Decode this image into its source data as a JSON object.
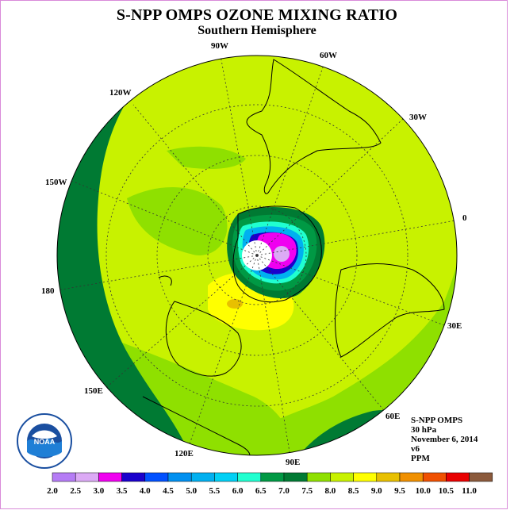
{
  "header": {
    "title": "S-NPP OMPS OZONE MIXING RATIO",
    "subtitle": "Southern Hemisphere"
  },
  "map": {
    "longitude_labels": [
      "90W",
      "60W",
      "120W",
      "30W",
      "150W",
      "0",
      "180",
      "30E",
      "150E",
      "60E",
      "120E",
      "90E"
    ],
    "fill_colors": {
      "dark_green": "#007a33",
      "mid_green": "#8fe000",
      "light_green": "#c8f200",
      "yellow": "#ffff00",
      "gold": "#e8c000",
      "white": "#ffffff"
    }
  },
  "info": {
    "line1": "S-NPP OMPS",
    "line2": "30 hPa",
    "line3": "November 6, 2014",
    "line4": "v6",
    "line5": "PPM"
  },
  "logo": {
    "icon": "noaa-logo",
    "text": "NOAA"
  },
  "colorbar": {
    "ticks": [
      "2.0",
      "2.5",
      "3.0",
      "3.5",
      "4.0",
      "4.5",
      "5.0",
      "5.5",
      "6.0",
      "6.5",
      "7.0",
      "7.5",
      "8.0",
      "8.5",
      "9.0",
      "9.5",
      "10.0",
      "10.5",
      "11.0"
    ],
    "colors": [
      "#b57cf5",
      "#dcaaf5",
      "#f000f0",
      "#1a00cc",
      "#0050ff",
      "#0090f0",
      "#00b0f0",
      "#00d0f5",
      "#20ffd0",
      "#009944",
      "#007a33",
      "#8fe000",
      "#c8f200",
      "#ffff00",
      "#e8c000",
      "#f09000",
      "#f05000",
      "#e80000",
      "#8b5a3c"
    ]
  }
}
